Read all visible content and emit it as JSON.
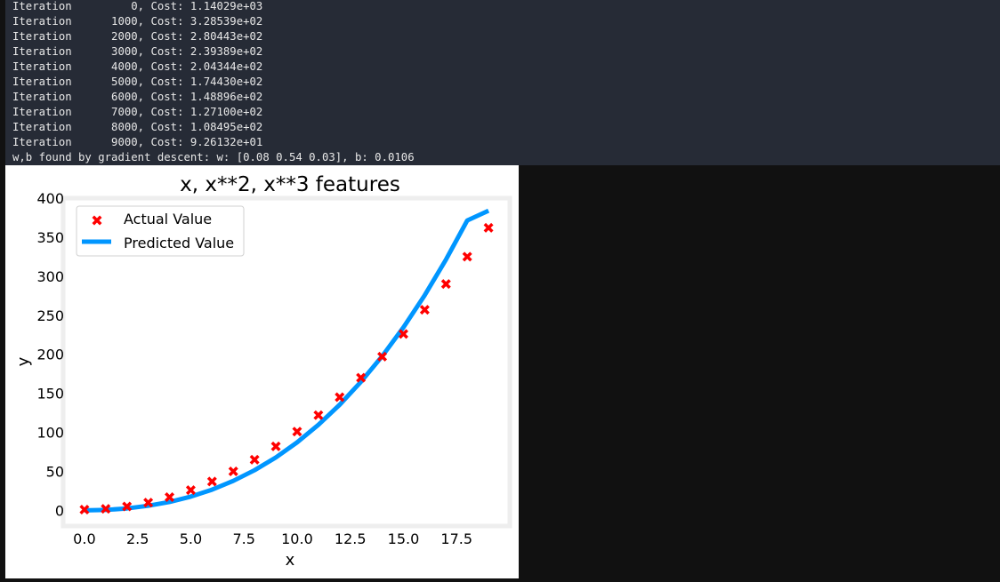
{
  "console": {
    "lines": [
      "Iteration         0, Cost: 1.14029e+03",
      "Iteration      1000, Cost: 3.28539e+02",
      "Iteration      2000, Cost: 2.80443e+02",
      "Iteration      3000, Cost: 2.39389e+02",
      "Iteration      4000, Cost: 2.04344e+02",
      "Iteration      5000, Cost: 1.74430e+02",
      "Iteration      6000, Cost: 1.48896e+02",
      "Iteration      7000, Cost: 1.27100e+02",
      "Iteration      8000, Cost: 1.08495e+02",
      "Iteration      9000, Cost: 9.26132e+01",
      "w,b found by gradient descent: w: [0.08 0.54 0.03], b: 0.0106"
    ]
  },
  "colors": {
    "actual": "#ff0000",
    "predicted": "#0096ff",
    "frame": "#eeeeee"
  },
  "chart_data": {
    "type": "scatter",
    "title": "x, x**2, x**3 features",
    "xlabel": "x",
    "ylabel": "y",
    "xlim": [
      -1.0,
      20.0
    ],
    "ylim": [
      -20,
      400
    ],
    "xticks": [
      "0.0",
      "2.5",
      "5.0",
      "7.5",
      "10.0",
      "12.5",
      "15.0",
      "17.5"
    ],
    "xtick_values": [
      0,
      2.5,
      5,
      7.5,
      10,
      12.5,
      15,
      17.5
    ],
    "yticks": [
      "0",
      "50",
      "100",
      "150",
      "200",
      "250",
      "300",
      "350",
      "400"
    ],
    "ytick_values": [
      0,
      50,
      100,
      150,
      200,
      250,
      300,
      350,
      400
    ],
    "legend_position": "top-left",
    "series": [
      {
        "name": "Actual Value",
        "kind": "scatter",
        "x": [
          0,
          1,
          2,
          3,
          4,
          5,
          6,
          7,
          8,
          9,
          10,
          11,
          12,
          13,
          14,
          15,
          16,
          17,
          18,
          19
        ],
        "y": [
          1,
          2,
          5,
          10,
          17,
          26,
          37,
          50,
          65,
          82,
          101,
          122,
          145,
          170,
          197,
          226,
          257,
          290,
          325,
          362
        ]
      },
      {
        "name": "Predicted Value",
        "kind": "line",
        "x": [
          0,
          1,
          2,
          3,
          4,
          5,
          6,
          7,
          8,
          9,
          10,
          11,
          12,
          13,
          14,
          15,
          16,
          17,
          18,
          19
        ],
        "y": [
          0.0,
          0.6,
          2.5,
          5.9,
          10.9,
          17.7,
          26.6,
          37.8,
          51.5,
          67.8,
          87.2,
          109.6,
          135.4,
          164.7,
          197.6,
          234.5,
          275.7,
          321.3,
          371.4,
          383.9
        ]
      }
    ]
  }
}
